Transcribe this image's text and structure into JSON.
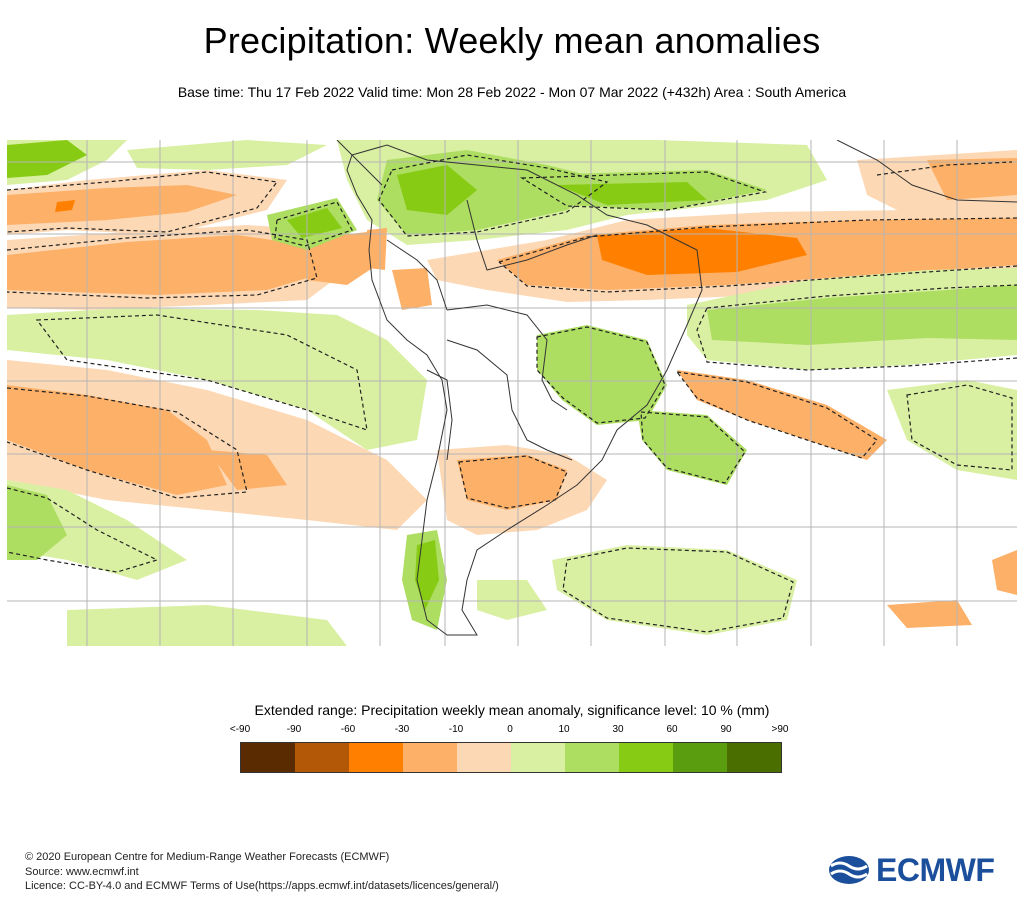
{
  "header": {
    "title": "Precipitation: Weekly mean anomalies",
    "subtitle": "Base time: Thu 17 Feb 2022 Valid time: Mon 28 Feb 2022 - Mon 07 Mar 2022 (+432h) Area : South America"
  },
  "map": {
    "region": "South America",
    "colors": {
      "lt_neg90": "#5a2a00",
      "neg90_neg60": "#b35806",
      "neg60_neg30": "#ff8000",
      "neg30_neg10": "#fdb068",
      "neg10_0": "#fdd8b4",
      "zero_10": "#d9f0a3",
      "10_30": "#addd61",
      "30_60": "#87cb14",
      "60_90": "#5a9e0f",
      "gt_90": "#4a6e00"
    }
  },
  "legend": {
    "title": "Extended range: Precipitation weekly mean anomaly, significance level: 10 % (mm)",
    "labels": [
      "<-90",
      "-90",
      "-60",
      "-30",
      "-10",
      "0",
      "10",
      "30",
      "60",
      "90",
      ">90"
    ],
    "colors": [
      "#5a2a00",
      "#b35806",
      "#ff8000",
      "#fdb068",
      "#fdd8b4",
      "#d9f0a3",
      "#addd61",
      "#87cb14",
      "#5a9e0f",
      "#4a6e00"
    ]
  },
  "footer": {
    "line1": "© 2020 European Centre for Medium-Range Weather Forecasts (ECMWF)",
    "line2": "Source: www.ecmwf.int",
    "line3": "Licence: CC-BY-4.0 and ECMWF Terms of Use(https://apps.ecmwf.int/datasets/licences/general/)"
  },
  "logo": {
    "text": "ECMWF",
    "icon": "ecmwf-logo-icon",
    "color": "#1b4f9c"
  }
}
